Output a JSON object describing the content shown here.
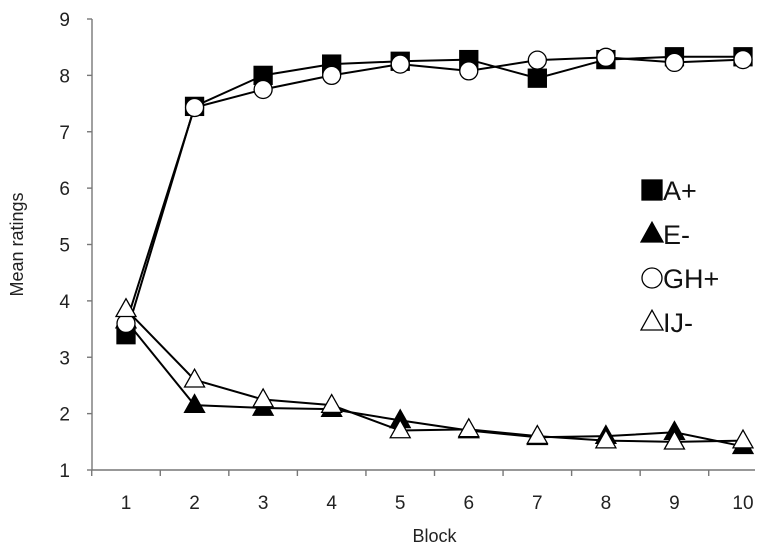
{
  "chart_data": {
    "type": "line",
    "xlabel": "Block",
    "ylabel": "Mean ratings",
    "x": [
      1,
      2,
      3,
      4,
      5,
      6,
      7,
      8,
      9,
      10
    ],
    "ylim": [
      1,
      9
    ],
    "yticks": [
      1,
      2,
      3,
      4,
      5,
      6,
      7,
      8,
      9
    ],
    "grid": false,
    "legend_position": "right",
    "series": [
      {
        "name": "A+",
        "marker": "square-filled",
        "values": [
          3.4,
          7.45,
          8.0,
          8.2,
          8.25,
          8.28,
          7.95,
          8.28,
          8.33,
          8.33
        ]
      },
      {
        "name": "E-",
        "marker": "triangle-filled",
        "values": [
          3.65,
          2.15,
          2.1,
          2.08,
          1.88,
          1.7,
          1.58,
          1.6,
          1.67,
          1.42
        ]
      },
      {
        "name": "GH+",
        "marker": "circle-open",
        "values": [
          3.6,
          7.43,
          7.75,
          8.0,
          8.2,
          8.08,
          8.27,
          8.32,
          8.23,
          8.28
        ]
      },
      {
        "name": "IJ-",
        "marker": "triangle-open",
        "values": [
          3.85,
          2.6,
          2.25,
          2.15,
          1.7,
          1.72,
          1.6,
          1.52,
          1.5,
          1.52
        ]
      }
    ],
    "colors": {
      "axis": "#777777",
      "line": "#000000",
      "marker_fill_open": "#ffffff",
      "marker_fill_solid": "#000000"
    }
  }
}
